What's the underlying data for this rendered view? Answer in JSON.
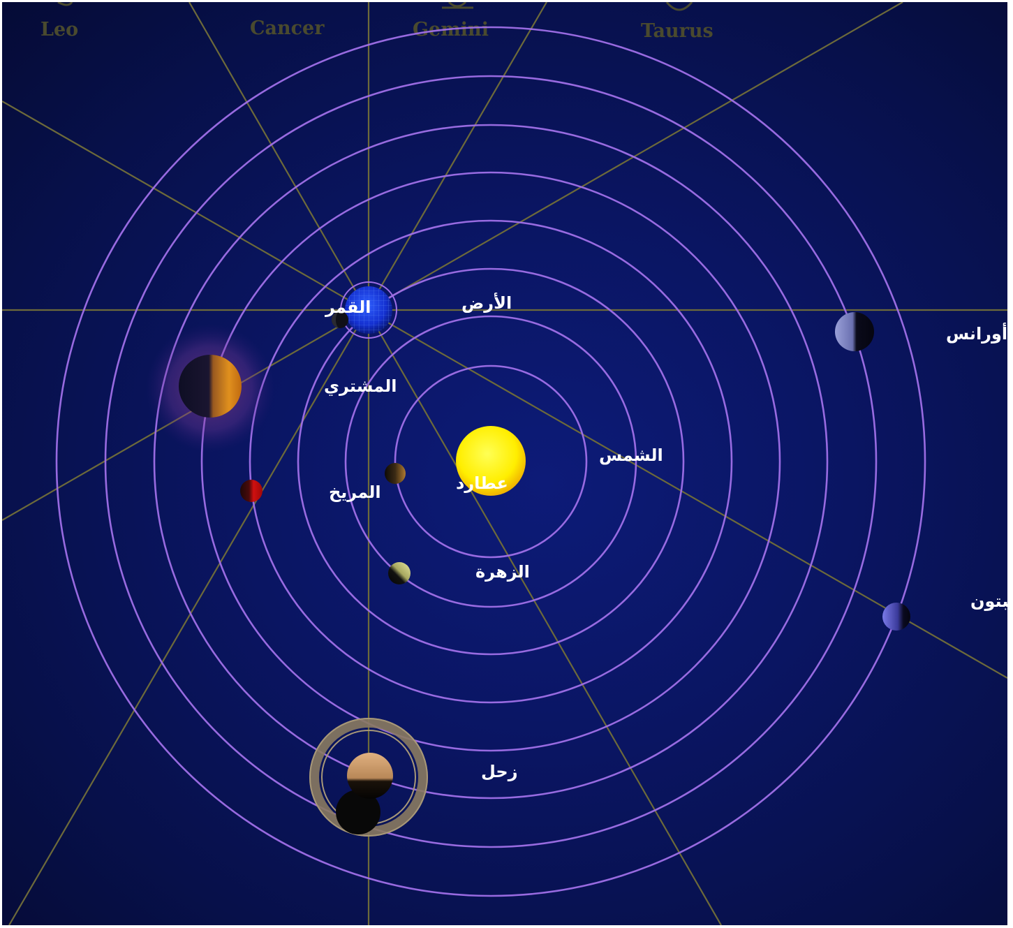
{
  "zodiac": [
    "Leo",
    "Cancer",
    "Gemini",
    "Taurus"
  ],
  "labels": {
    "sun": "الشمس",
    "earth": "الأرض",
    "moon": "القمر",
    "mercury": "عطارد",
    "venus": "الزهرة",
    "mars": "المريخ",
    "jupiter": "المشتري",
    "saturn": "زحل",
    "uranus": "أورانس",
    "neptune": "نبتون"
  },
  "colors": {
    "background": "#0a1562",
    "orbit": "#a070e8",
    "spoke": "#6d6a3a",
    "sun": "#ffee00",
    "earth": "#1a3cff",
    "mars": "#cc1111",
    "jupiter": "#e08a1a",
    "saturn": "#c89a66"
  }
}
